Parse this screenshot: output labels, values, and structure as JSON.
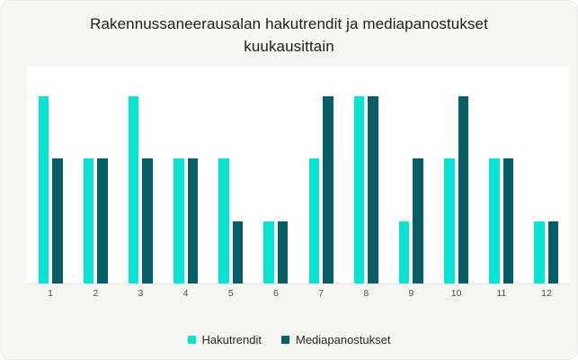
{
  "chart_data": {
    "type": "bar",
    "title": "Rakennussaneerausalan hakutrendit ja mediapanostukset kuukausittain",
    "categories": [
      "1",
      "2",
      "3",
      "4",
      "5",
      "6",
      "7",
      "8",
      "9",
      "10",
      "11",
      "12"
    ],
    "series": [
      {
        "name": "Hakutrendit",
        "color": "#07e5d2",
        "values": [
          3,
          2,
          3,
          2,
          2,
          1,
          2,
          3,
          1,
          2,
          2,
          1
        ]
      },
      {
        "name": "Mediapanostukset",
        "color": "#075e67",
        "values": [
          2,
          2,
          2,
          2,
          1,
          1,
          3,
          3,
          2,
          3,
          2,
          1
        ]
      }
    ],
    "xlabel": "",
    "ylabel": "",
    "ylim": [
      0,
      3.5
    ],
    "grid": false,
    "y_axis_labels_visible": false,
    "legend_position": "bottom"
  },
  "colors": {
    "card_background": "#f7f6f3",
    "plot_background": "#ffffff",
    "axis_line": "#e8e6e2",
    "title_text": "#1c1c1c",
    "tick_text": "#4a4a4a",
    "legend_text": "#262626"
  }
}
